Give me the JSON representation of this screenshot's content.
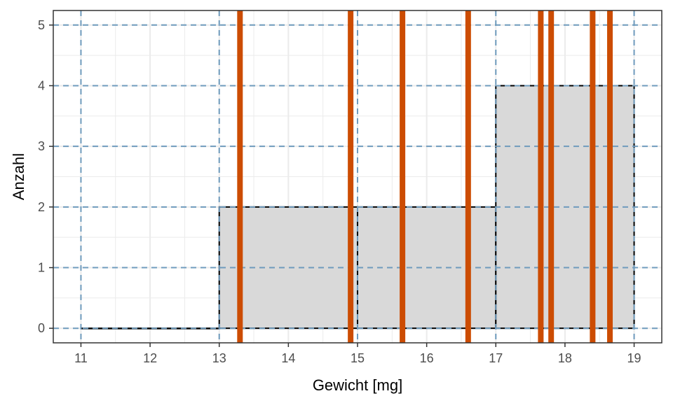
{
  "chart_data": {
    "type": "bar",
    "subtype": "histogram",
    "xlabel": "Gewicht [mg]",
    "ylabel": "Anzahl",
    "xlim": [
      10.6,
      19.4
    ],
    "ylim": [
      -0.24,
      5.24
    ],
    "x_ticks": [
      "11",
      "12",
      "13",
      "14",
      "15",
      "16",
      "17",
      "18",
      "19"
    ],
    "y_ticks": [
      "0",
      "1",
      "2",
      "3",
      "4",
      "5"
    ],
    "bins": [
      {
        "start": 11,
        "end": 13,
        "count": 0
      },
      {
        "start": 13,
        "end": 15,
        "count": 2
      },
      {
        "start": 15,
        "end": 17,
        "count": 2
      },
      {
        "start": 17,
        "end": 19,
        "count": 4
      }
    ],
    "observations": [
      13.3,
      14.9,
      15.65,
      16.6,
      17.65,
      17.8,
      18.4,
      18.65
    ],
    "dashed_reference_x": [
      11,
      13,
      15,
      17,
      19
    ],
    "dashed_reference_y": [
      0,
      1,
      2,
      3,
      4,
      5
    ],
    "grid": true,
    "colors": {
      "bar_fill": "#d9d9d9",
      "bar_stroke": "#000000",
      "observation_line": "#cc4c02",
      "reference_line": "#6f9bbd",
      "grid_major": "#ebebeb",
      "panel_border": "#333333"
    }
  }
}
